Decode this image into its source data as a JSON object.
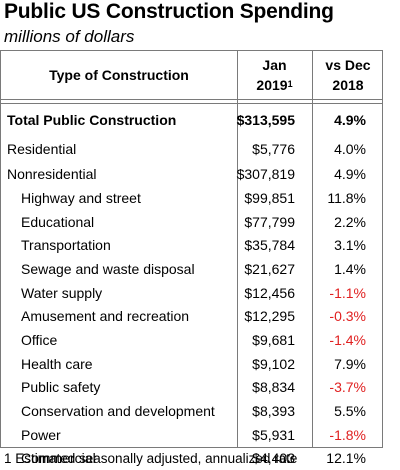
{
  "title": "Public US Construction Spending",
  "subtitle": "millions of dollars",
  "headers": {
    "type": "Type of Construction",
    "period_line1": "Jan",
    "period_line2": "2019",
    "period_sup": "1",
    "change_line1": "vs Dec",
    "change_line2": "2018"
  },
  "rows": [
    {
      "label": "Total Public Construction",
      "amount": "$313,595",
      "change": "4.9%"
    },
    {
      "label": "Residential",
      "amount": "$5,776",
      "change": "4.0%"
    },
    {
      "label": "Nonresidential",
      "amount": "$307,819",
      "change": "4.9%"
    },
    {
      "label": "Highway and street",
      "amount": "$99,851",
      "change": "11.8%"
    },
    {
      "label": "Educational",
      "amount": "$77,799",
      "change": "2.2%"
    },
    {
      "label": "Transportation",
      "amount": "$35,784",
      "change": "3.1%"
    },
    {
      "label": "Sewage and waste disposal",
      "amount": "$21,627",
      "change": "1.4%"
    },
    {
      "label": "Water supply",
      "amount": "$12,456",
      "change": "-1.1%"
    },
    {
      "label": "Amusement and recreation",
      "amount": "$12,295",
      "change": "-0.3%"
    },
    {
      "label": "Office",
      "amount": "$9,681",
      "change": "-1.4%"
    },
    {
      "label": "Health care",
      "amount": "$9,102",
      "change": "7.9%"
    },
    {
      "label": "Public safety",
      "amount": "$8,834",
      "change": "-3.7%"
    },
    {
      "label": "Conservation and development",
      "amount": "$8,393",
      "change": "5.5%"
    },
    {
      "label": "Power",
      "amount": "$5,931",
      "change": "-1.8%"
    },
    {
      "label": "Commercial",
      "amount": "$4,403",
      "change": "12.1%"
    }
  ],
  "footnote": "1 Estimated seasonally adjusted, annualized rate",
  "colors": {
    "negative": "#e02020",
    "border": "#7a7a7a"
  }
}
